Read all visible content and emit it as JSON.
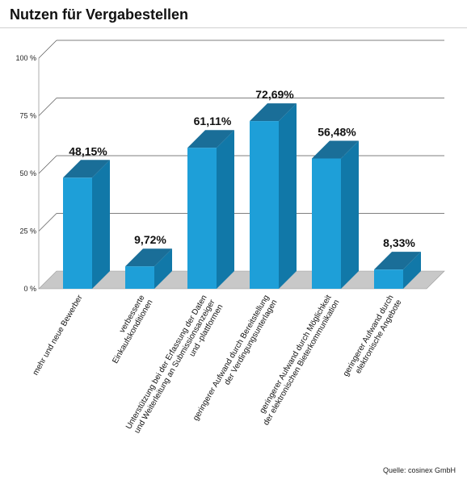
{
  "title": "Nutzen für Vergabestellen",
  "source": "Quelle: cosinex GmbH",
  "colors": {
    "bar_front": "#1e9fd8",
    "bar_side": "#1178a8",
    "bar_top": "#1a6e98",
    "floor": "#c8c8c8",
    "grid": "#555555"
  },
  "chart_data": {
    "type": "bar",
    "title": "Nutzen für Vergabestellen",
    "categories": [
      [
        "mehr und neue Bewerber"
      ],
      [
        "verbesserte",
        "Einkaufskonditionen"
      ],
      [
        "Unterstützung bei der Erfassung der Daten",
        "und Weiterleitung an Submissionsanzeiger",
        "und -plattformen"
      ],
      [
        "geringerer Aufwand durch Bereitstellung",
        "der Verdingungsunterlagen"
      ],
      [
        "geringerer Aufwand durch Möglichkeit",
        "der elektronischen Bieterkommunikation"
      ],
      [
        "geringerer Aufwand durch",
        "elektronische Angebote"
      ]
    ],
    "values": [
      48.15,
      9.72,
      61.11,
      72.69,
      56.48,
      8.33
    ],
    "value_labels": [
      "48,15%",
      "9,72%",
      "61,11%",
      "72,69%",
      "56,48%",
      "8,33%"
    ],
    "ylim": [
      0,
      100
    ],
    "yticks": [
      0,
      25,
      50,
      75,
      100
    ],
    "ytick_labels": [
      "0 %",
      "25 %",
      "50 %",
      "75 %",
      "100 %"
    ],
    "grid": true
  }
}
